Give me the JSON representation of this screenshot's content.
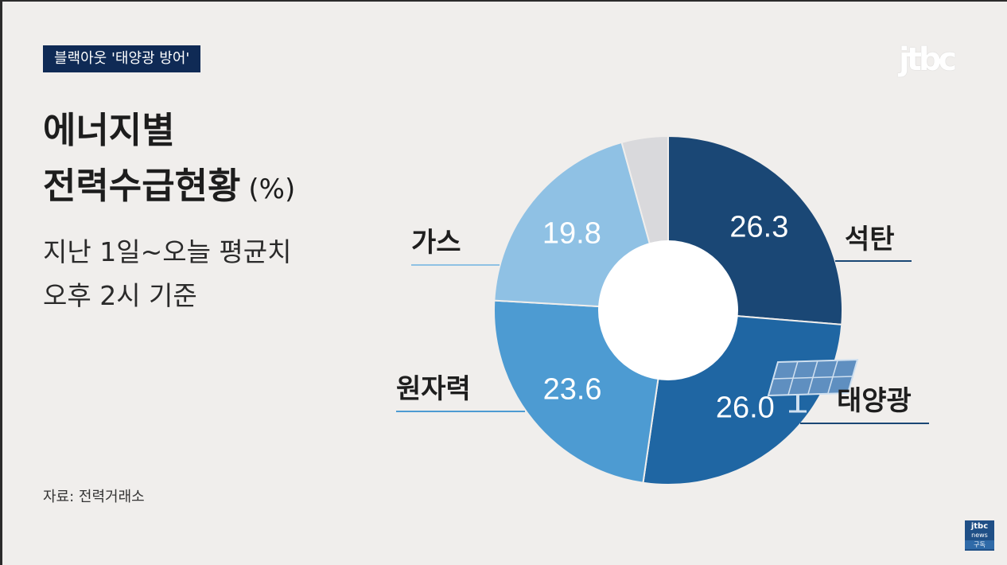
{
  "tag": "블랙아웃 '태양광 방어'",
  "logo": "jtbc",
  "title": {
    "line1": "에너지별",
    "line2": "전력수급현황",
    "unit": "(%)"
  },
  "subtitle": {
    "line1": "지난 1일~오늘 평균치",
    "line2": "오후 2시 기준"
  },
  "source": "자료: 전력거래소",
  "badge": {
    "line1": "jtbc",
    "line2": "news",
    "line3": "구독"
  },
  "colors": {
    "coal": "#1a4775",
    "solar": "#1f66a3",
    "nuclear": "#4d9bd2",
    "gas": "#8fc1e4",
    "other": "#d9d9dc",
    "tag_bg": "#0f2a55"
  },
  "chart_data": {
    "type": "pie",
    "donut": true,
    "unit": "%",
    "categories": [
      "석탄",
      "태양광",
      "원자력",
      "가스",
      ""
    ],
    "values": [
      26.3,
      26.0,
      23.6,
      19.8,
      4.3
    ],
    "value_labels": [
      "26.3",
      "26.0",
      "23.6",
      "19.8",
      ""
    ],
    "color_keys": [
      "coal",
      "solar",
      "nuclear",
      "gas",
      "other"
    ]
  }
}
